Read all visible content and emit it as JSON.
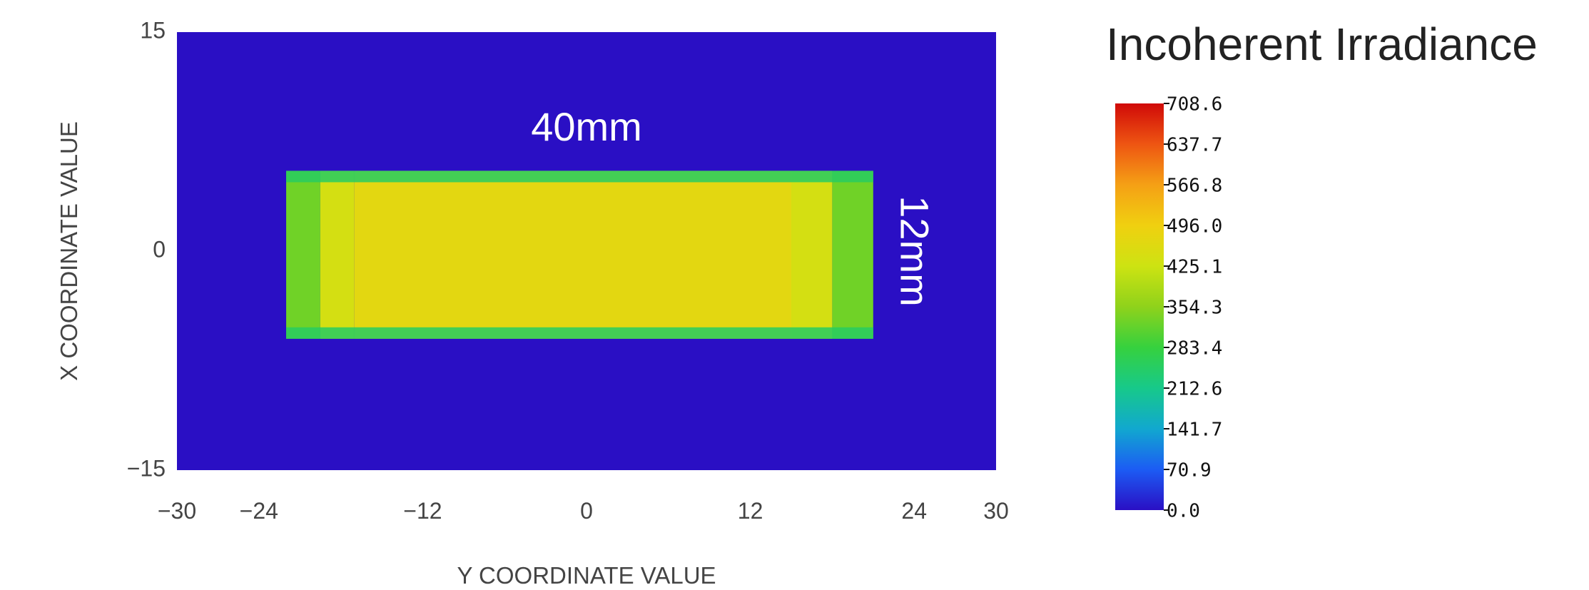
{
  "chart_data": {
    "type": "heatmap",
    "title": "",
    "xlabel": "Y COORDINATE VALUE",
    "ylabel": "X COORDINATE VALUE",
    "xlim": [
      -30,
      30
    ],
    "ylim": [
      -15,
      15
    ],
    "x_ticks": [
      "−30",
      "−24",
      "−12",
      "0",
      "12",
      "24",
      "30"
    ],
    "x_tick_values": [
      -30,
      -24,
      -12,
      0,
      12,
      24,
      30
    ],
    "y_ticks": [
      "15",
      "0",
      "−15"
    ],
    "y_tick_values": [
      15,
      0,
      -15
    ],
    "background_value": 0.0,
    "spot": {
      "x_range": [
        -22,
        21
      ],
      "y_range": [
        -6,
        5.5
      ],
      "regions": [
        {
          "x_range": [
            -22,
            -19.5
          ],
          "value": 330
        },
        {
          "x_range": [
            -19.5,
            -17
          ],
          "value": 440
        },
        {
          "x_range": [
            -17,
            15
          ],
          "value": 470
        },
        {
          "x_range": [
            15,
            18
          ],
          "value": 440
        },
        {
          "x_range": [
            18,
            21
          ],
          "value": 330
        }
      ],
      "edge_value": 250
    },
    "annotations": [
      {
        "text": "40mm",
        "x": 0,
        "y": 8.3,
        "rotation": 0
      },
      {
        "text": "12mm",
        "x": 23.8,
        "y": 0,
        "rotation": 90
      }
    ],
    "colorbar": {
      "title": "Incoherent Irradiance",
      "min": 0.0,
      "max": 708.6,
      "tick_labels": [
        "708.6",
        "637.7",
        "566.8",
        "496.0",
        "425.1",
        "354.3",
        "283.4",
        "212.6",
        "141.7",
        "70.9",
        "0.0"
      ],
      "colors": [
        "#2a0fc4",
        "#1c5cf4",
        "#11a8cf",
        "#17c98a",
        "#36d13e",
        "#8fd21b",
        "#cde312",
        "#f0d010",
        "#f5a015",
        "#ee5512",
        "#d00a08"
      ]
    }
  }
}
